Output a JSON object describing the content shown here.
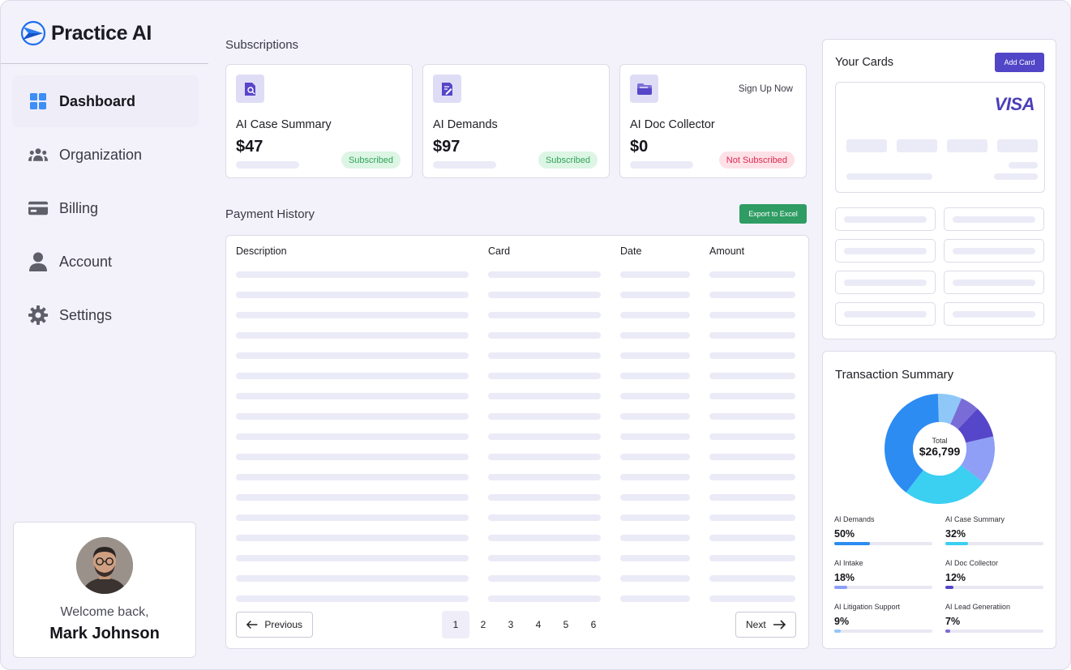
{
  "app": {
    "name": "Practice AI"
  },
  "sidebar": {
    "items": [
      {
        "label": "Dashboard",
        "icon": "dashboard-icon",
        "active": true
      },
      {
        "label": "Organization",
        "icon": "users-icon"
      },
      {
        "label": "Billing",
        "icon": "credit-card-icon"
      },
      {
        "label": "Account",
        "icon": "person-icon"
      },
      {
        "label": "Settings",
        "icon": "gear-icon"
      }
    ],
    "profile": {
      "welcome": "Welcome back,",
      "name": "Mark Johnson"
    }
  },
  "subscriptions": {
    "title": "Subscriptions",
    "cards": [
      {
        "name": "AI Case Summary",
        "price": "$47",
        "status": "Subscribed",
        "icon": "document-search-icon"
      },
      {
        "name": "AI Demands",
        "price": "$97",
        "status": "Subscribed",
        "icon": "document-edit-icon"
      },
      {
        "name": "AI Doc Collector",
        "price": "$0",
        "status": "Not Subscribed",
        "icon": "folder-icon",
        "cta": "Sign Up Now"
      }
    ]
  },
  "payment_history": {
    "title": "Payment History",
    "export_label": "Export to Excel",
    "columns": [
      "Description",
      "Card",
      "Date",
      "Amount"
    ],
    "pagination": {
      "previous": "Previous",
      "next": "Next",
      "pages": [
        "1",
        "2",
        "3",
        "4",
        "5",
        "6"
      ],
      "current": "1"
    }
  },
  "your_cards": {
    "title": "Your Cards",
    "add_label": "Add Card",
    "brand": "VISA"
  },
  "transaction_summary": {
    "title": "Transaction Summary",
    "total_label": "Total",
    "total_value": "$26,799",
    "colors": {
      "AI Demands": "#2c8cf2",
      "AI Case Summary": "#3bcff2",
      "AI Intake": "#8e9ff5",
      "AI Doc Collector": "#5646c9",
      "AI Litigation Support": "#8fc8f8",
      "AI Lead Generatiion": "#7a6cd6"
    }
  },
  "chart_data": {
    "type": "pie",
    "categories": [
      "AI Demands",
      "AI Case Summary",
      "AI Intake",
      "AI Doc Collector",
      "AI Litigation Support",
      "AI Lead Generatiion"
    ],
    "values": [
      50,
      32,
      18,
      12,
      9,
      7
    ],
    "value_labels": [
      "50%",
      "32%",
      "18%",
      "12%",
      "9%",
      "7%"
    ]
  }
}
